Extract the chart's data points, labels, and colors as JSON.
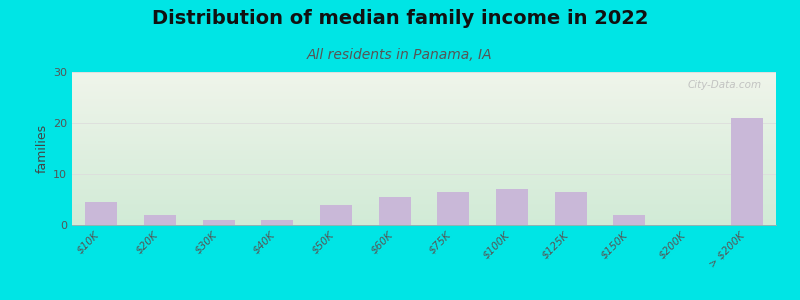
{
  "title": "Distribution of median family income in 2022",
  "subtitle": "All residents in Panama, IA",
  "categories": [
    "$10K",
    "$20K",
    "$30K",
    "$40K",
    "$50K",
    "$60K",
    "$75K",
    "$100K",
    "$125K",
    "$150K",
    "$200K",
    "> $200K"
  ],
  "values": [
    4.5,
    2.0,
    1.0,
    1.0,
    4.0,
    5.5,
    6.5,
    7.0,
    6.5,
    2.0,
    0,
    21.0
  ],
  "bar_color": "#c9b8d8",
  "background_outer": "#00e5e5",
  "background_plot_topleft": "#e8f0e8",
  "background_plot_topright": "#f8f8f0",
  "background_plot_bottomleft": "#d0e8d8",
  "background_plot_bottomright": "#e8f0e8",
  "ylabel": "families",
  "ylim": [
    0,
    30
  ],
  "yticks": [
    0,
    10,
    20,
    30
  ],
  "grid_color": "#dddddd",
  "title_fontsize": 14,
  "subtitle_fontsize": 10,
  "watermark": "City-Data.com"
}
